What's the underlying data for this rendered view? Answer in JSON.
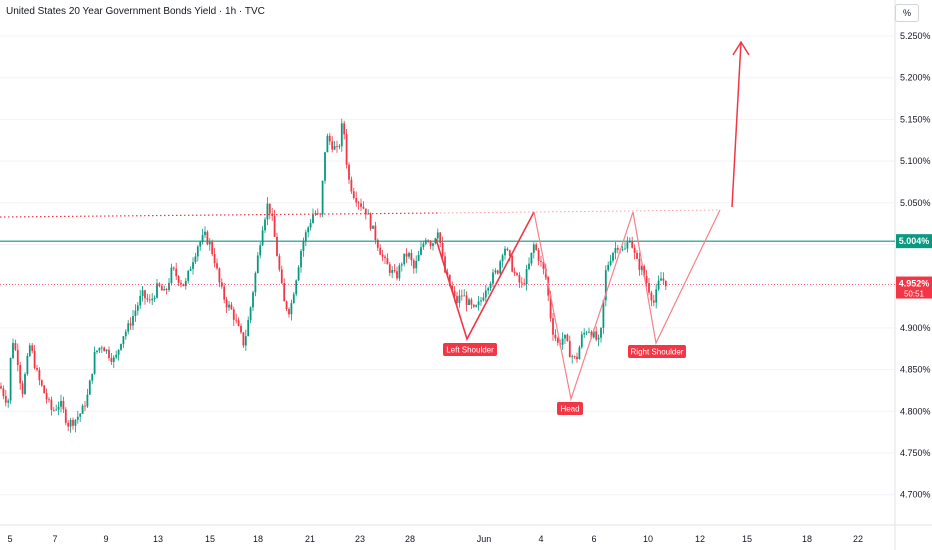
{
  "chart_data": {
    "type": "candlestick",
    "title": "United States 20 Year Government Bonds Yield · 1h · TVC",
    "unit": "%",
    "y_axis": {
      "range": [
        4.66,
        5.27
      ],
      "ticks": [
        "5.250%",
        "5.200%",
        "5.150%",
        "5.100%",
        "5.050%",
        "5.000%",
        "4.950%",
        "4.900%",
        "4.850%",
        "4.800%",
        "4.750%",
        "4.700%"
      ]
    },
    "x_axis": {
      "ticks": [
        "5",
        "7",
        "9",
        "13",
        "15",
        "18",
        "21",
        "23",
        "28",
        "Jun",
        "4",
        "6",
        "10",
        "12",
        "15",
        "18",
        "22"
      ]
    },
    "price_path": [
      [
        0,
        4.83
      ],
      [
        8,
        4.81
      ],
      [
        12,
        4.89
      ],
      [
        18,
        4.86
      ],
      [
        22,
        4.82
      ],
      [
        30,
        4.88
      ],
      [
        38,
        4.84
      ],
      [
        45,
        4.82
      ],
      [
        52,
        4.8
      ],
      [
        60,
        4.81
      ],
      [
        68,
        4.785
      ],
      [
        75,
        4.79
      ],
      [
        82,
        4.8
      ],
      [
        88,
        4.82
      ],
      [
        95,
        4.87
      ],
      [
        102,
        4.88
      ],
      [
        108,
        4.87
      ],
      [
        115,
        4.86
      ],
      [
        122,
        4.89
      ],
      [
        128,
        4.9
      ],
      [
        135,
        4.92
      ],
      [
        142,
        4.94
      ],
      [
        150,
        4.93
      ],
      [
        158,
        4.95
      ],
      [
        165,
        4.94
      ],
      [
        172,
        4.97
      ],
      [
        178,
        4.96
      ],
      [
        185,
        4.95
      ],
      [
        192,
        4.98
      ],
      [
        198,
        5.0
      ],
      [
        205,
        5.01
      ],
      [
        210,
        5.0
      ],
      [
        215,
        4.98
      ],
      [
        220,
        4.95
      ],
      [
        226,
        4.93
      ],
      [
        232,
        4.92
      ],
      [
        238,
        4.9
      ],
      [
        244,
        4.88
      ],
      [
        250,
        4.92
      ],
      [
        256,
        4.97
      ],
      [
        262,
        5.02
      ],
      [
        268,
        5.05
      ],
      [
        272,
        5.03
      ],
      [
        278,
        4.98
      ],
      [
        284,
        4.93
      ],
      [
        290,
        4.92
      ],
      [
        296,
        4.96
      ],
      [
        302,
        5.0
      ],
      [
        308,
        5.02
      ],
      [
        314,
        5.04
      ],
      [
        320,
        5.03
      ],
      [
        326,
        5.13
      ],
      [
        332,
        5.12
      ],
      [
        338,
        5.11
      ],
      [
        343,
        5.15
      ],
      [
        348,
        5.08
      ],
      [
        354,
        5.06
      ],
      [
        360,
        5.05
      ],
      [
        366,
        5.04
      ],
      [
        372,
        5.02
      ],
      [
        378,
        5.0
      ],
      [
        384,
        4.98
      ],
      [
        390,
        4.97
      ],
      [
        396,
        4.96
      ],
      [
        402,
        4.98
      ],
      [
        408,
        4.99
      ],
      [
        414,
        4.97
      ],
      [
        420,
        4.99
      ],
      [
        426,
        5.01
      ],
      [
        432,
        5.0
      ],
      [
        438,
        5.02
      ],
      [
        444,
        4.97
      ],
      [
        450,
        4.95
      ],
      [
        456,
        4.93
      ],
      [
        462,
        4.94
      ],
      [
        468,
        4.93
      ],
      [
        474,
        4.92
      ],
      [
        480,
        4.93
      ],
      [
        486,
        4.95
      ],
      [
        492,
        4.96
      ],
      [
        498,
        4.97
      ],
      [
        504,
        5.0
      ],
      [
        510,
        4.98
      ],
      [
        516,
        4.96
      ],
      [
        522,
        4.95
      ],
      [
        528,
        4.97
      ],
      [
        534,
        5.0
      ],
      [
        540,
        4.98
      ],
      [
        546,
        4.96
      ],
      [
        552,
        4.9
      ],
      [
        558,
        4.88
      ],
      [
        564,
        4.89
      ],
      [
        570,
        4.87
      ],
      [
        576,
        4.86
      ],
      [
        582,
        4.89
      ],
      [
        588,
        4.9
      ],
      [
        594,
        4.89
      ],
      [
        600,
        4.88
      ],
      [
        606,
        4.97
      ],
      [
        612,
        4.99
      ],
      [
        618,
        5.0
      ],
      [
        624,
        4.99
      ],
      [
        630,
        5.01
      ],
      [
        636,
        4.98
      ],
      [
        642,
        4.97
      ],
      [
        648,
        4.95
      ],
      [
        654,
        4.93
      ],
      [
        660,
        4.96
      ],
      [
        666,
        4.955
      ]
    ],
    "horizontal_lines": [
      {
        "value": 5.004,
        "label": "5.004%",
        "color": "#089981"
      },
      {
        "value": 4.952,
        "label": "4.952%",
        "sublabel": "50:51",
        "color": "#f23645"
      }
    ],
    "pattern_labels": [
      "Left Shoulder",
      "Head",
      "Right Shoulder"
    ],
    "colors": {
      "up": "#089981",
      "down": "#f23645",
      "pattern": "#f23645",
      "support": "#089981"
    }
  },
  "header": {
    "unit_label": "%"
  }
}
